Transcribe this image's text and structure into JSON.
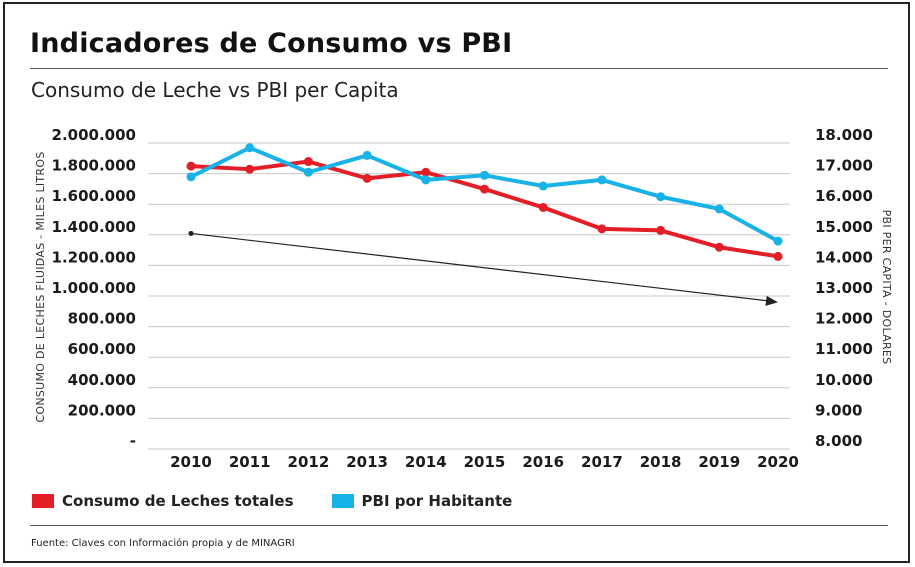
{
  "header": {
    "title": "Indicadores de Consumo vs PBI",
    "subtitle": "Consumo de Leche vs PBI per Capita"
  },
  "footer": {
    "source": "Fuente: Claves con Información propia y de MINAGRI"
  },
  "colors": {
    "consumo": "#e31e26",
    "pbi": "#16b2e8",
    "grid": "#c8c8c8",
    "arrow": "#222222"
  },
  "chart_data": {
    "type": "line",
    "x": [
      "2010",
      "2011",
      "2012",
      "2013",
      "2014",
      "2015",
      "2016",
      "2017",
      "2018",
      "2019",
      "2020"
    ],
    "y_left": {
      "label": "CONSUMO DE LECHES FLUIDAS - MILES LITROS",
      "ylim": [
        0,
        2000000
      ],
      "ticks": [
        "2.000.000",
        "1.800.000",
        "1.600.000",
        "1.400.000",
        "1.200.000",
        "1.000.000",
        "800.000",
        "600.000",
        "400.000",
        "200.000",
        "-"
      ],
      "tick_values": [
        2000000,
        1800000,
        1600000,
        1400000,
        1200000,
        1000000,
        800000,
        600000,
        400000,
        200000,
        0
      ]
    },
    "y_right": {
      "label": "PBI PER CAPITA - DOLARES",
      "ylim": [
        8000,
        18000
      ],
      "ticks": [
        "18.000",
        "17.000",
        "16.000",
        "15.000",
        "14.000",
        "13.000",
        "12.000",
        "11.000",
        "10.000",
        "9.000",
        "8.000"
      ],
      "tick_values": [
        18000,
        17000,
        16000,
        15000,
        14000,
        13000,
        12000,
        11000,
        10000,
        9000,
        8000
      ]
    },
    "series": [
      {
        "name": "Consumo de Leches totales",
        "axis": "left",
        "color": "#e31e26",
        "values": [
          1790000,
          1770000,
          1820000,
          1710000,
          1750000,
          1640000,
          1520000,
          1380000,
          1370000,
          1260000,
          1200000
        ]
      },
      {
        "name": "PBI por Habitante",
        "axis": "right",
        "color": "#16b2e8",
        "values": [
          16600,
          17550,
          16750,
          17300,
          16500,
          16650,
          16300,
          16500,
          15950,
          15550,
          14500
        ]
      }
    ],
    "trend_arrow": {
      "from": [
        "2010",
        1350000
      ],
      "to": [
        "2020",
        900000
      ]
    },
    "grid": true,
    "legend_position": "bottom-left"
  }
}
